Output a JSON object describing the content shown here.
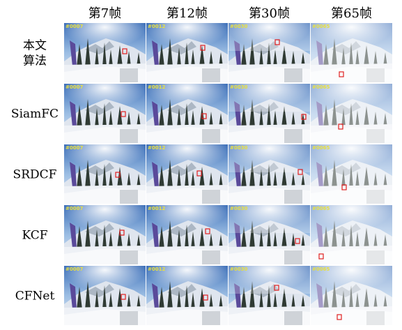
{
  "columns": [
    "第7帧",
    "第12帧",
    "第30帧",
    "第65帧"
  ],
  "frame_labels": [
    "#0007",
    "#0012",
    "#0030",
    "#0065"
  ],
  "rows": [
    {
      "label": [
        "本文",
        "算法"
      ]
    },
    {
      "label": [
        "SiamFC"
      ]
    },
    {
      "label": [
        "SRDCF"
      ]
    },
    {
      "label": [
        "KCF"
      ]
    },
    {
      "label": [
        "CFNet"
      ]
    }
  ]
}
